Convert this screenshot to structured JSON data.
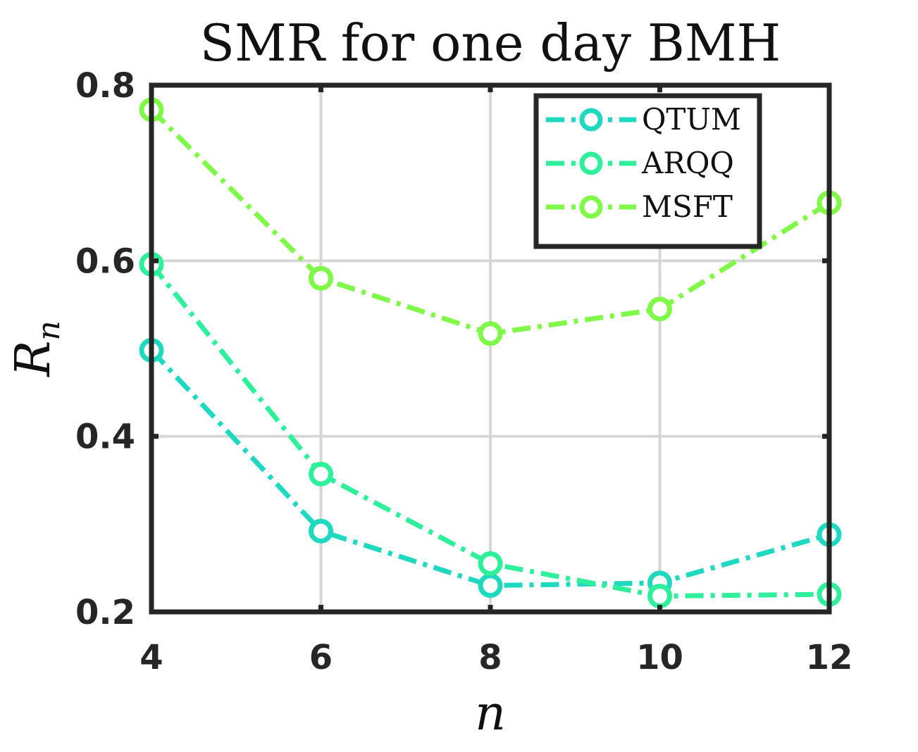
{
  "chart_data": {
    "type": "line",
    "title": "SMR for one day BMH",
    "xlabel": "n",
    "ylabel_main": "R",
    "ylabel_sub": "n",
    "x": [
      4,
      6,
      8,
      10,
      12
    ],
    "xlim": [
      4,
      12
    ],
    "ylim": [
      0.2,
      0.8
    ],
    "xticks": [
      "4",
      "6",
      "8",
      "10",
      "12"
    ],
    "yticks": [
      "0.2",
      "0.4",
      "0.6",
      "0.8"
    ],
    "grid": true,
    "legend_position": "top-right",
    "series": [
      {
        "name": "QTUM",
        "color": "#1fd8c0",
        "values": [
          0.498,
          0.292,
          0.23,
          0.233,
          0.288
        ]
      },
      {
        "name": "ARQQ",
        "color": "#2ef09a",
        "values": [
          0.596,
          0.357,
          0.255,
          0.218,
          0.22
        ]
      },
      {
        "name": "MSFT",
        "color": "#80f848",
        "values": [
          0.772,
          0.58,
          0.517,
          0.545,
          0.666
        ]
      }
    ]
  }
}
